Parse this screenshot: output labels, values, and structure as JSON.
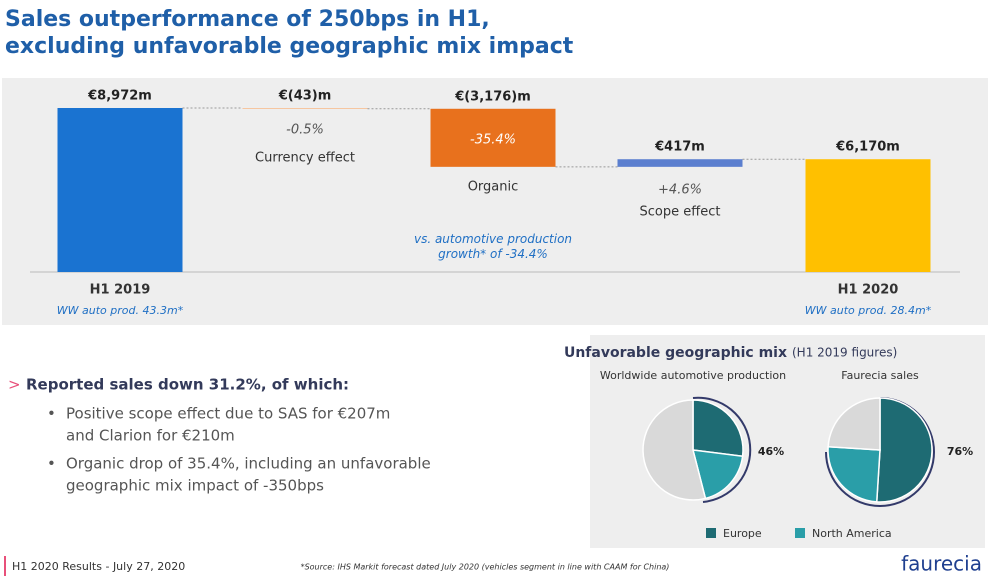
{
  "header": {
    "title": [
      "Sales outperformance of 250bps in H1,",
      "excluding unfavorable geographic mix impact"
    ]
  },
  "chart_data": [
    {
      "type": "waterfall",
      "categories": [
        "H1 2019",
        "Currency effect",
        "Organic",
        "Scope effect",
        "H1 2020"
      ],
      "values": [
        8972,
        -43,
        -3176,
        417,
        6170
      ],
      "value_labels": [
        "€8,972m",
        "€(43)m",
        "€(3,176)m",
        "€417m",
        "€6,170m"
      ],
      "totals": [
        true,
        false,
        false,
        false,
        true
      ],
      "colors": [
        "#1a73d1",
        "#f6c6a0",
        "#e8711d",
        "#5b7fcf",
        "#ffc000"
      ],
      "pct_labels": [
        null,
        "-0.5%",
        "-35.4%",
        "+4.6%",
        null
      ],
      "notes": [
        "WW auto prod. 43.3m*",
        null,
        "vs. automotive production growth* of -34.4%",
        null,
        "WW auto prod. 28.4m*"
      ]
    },
    {
      "type": "pie",
      "title": "Worldwide automotive production",
      "categories": [
        "Europe",
        "North America",
        null
      ],
      "values": [
        27,
        19,
        54
      ],
      "colors": [
        "#1e6b73",
        "#2a9ea8",
        "#d9d9d9"
      ],
      "annotation": "46%"
    },
    {
      "type": "pie",
      "title": "Faurecia sales",
      "categories": [
        "Europe",
        "North America",
        null
      ],
      "values": [
        51,
        25,
        24
      ],
      "colors": [
        "#1e6b73",
        "#2a9ea8",
        "#d9d9d9"
      ],
      "annotation": "76%"
    }
  ],
  "mix": {
    "title": "Unfavorable geographic mix",
    "subtitle": "(H1 2019 figures)"
  },
  "bullets": {
    "heading": "Reported sales down 31.2%, of which:",
    "items": [
      [
        "Positive scope effect due to SAS for €207m",
        "and Clarion for €210m"
      ],
      [
        "Organic drop of 35.4%, including an unfavorable",
        "geographic mix impact of -350bps"
      ]
    ]
  },
  "footer": {
    "left": "H1 2020 Results - July 27, 2020",
    "source": "*Source: IHS Markit forecast dated July 2020 (vehicles segment in line with CAAM for China)",
    "logo": "faurecia"
  }
}
